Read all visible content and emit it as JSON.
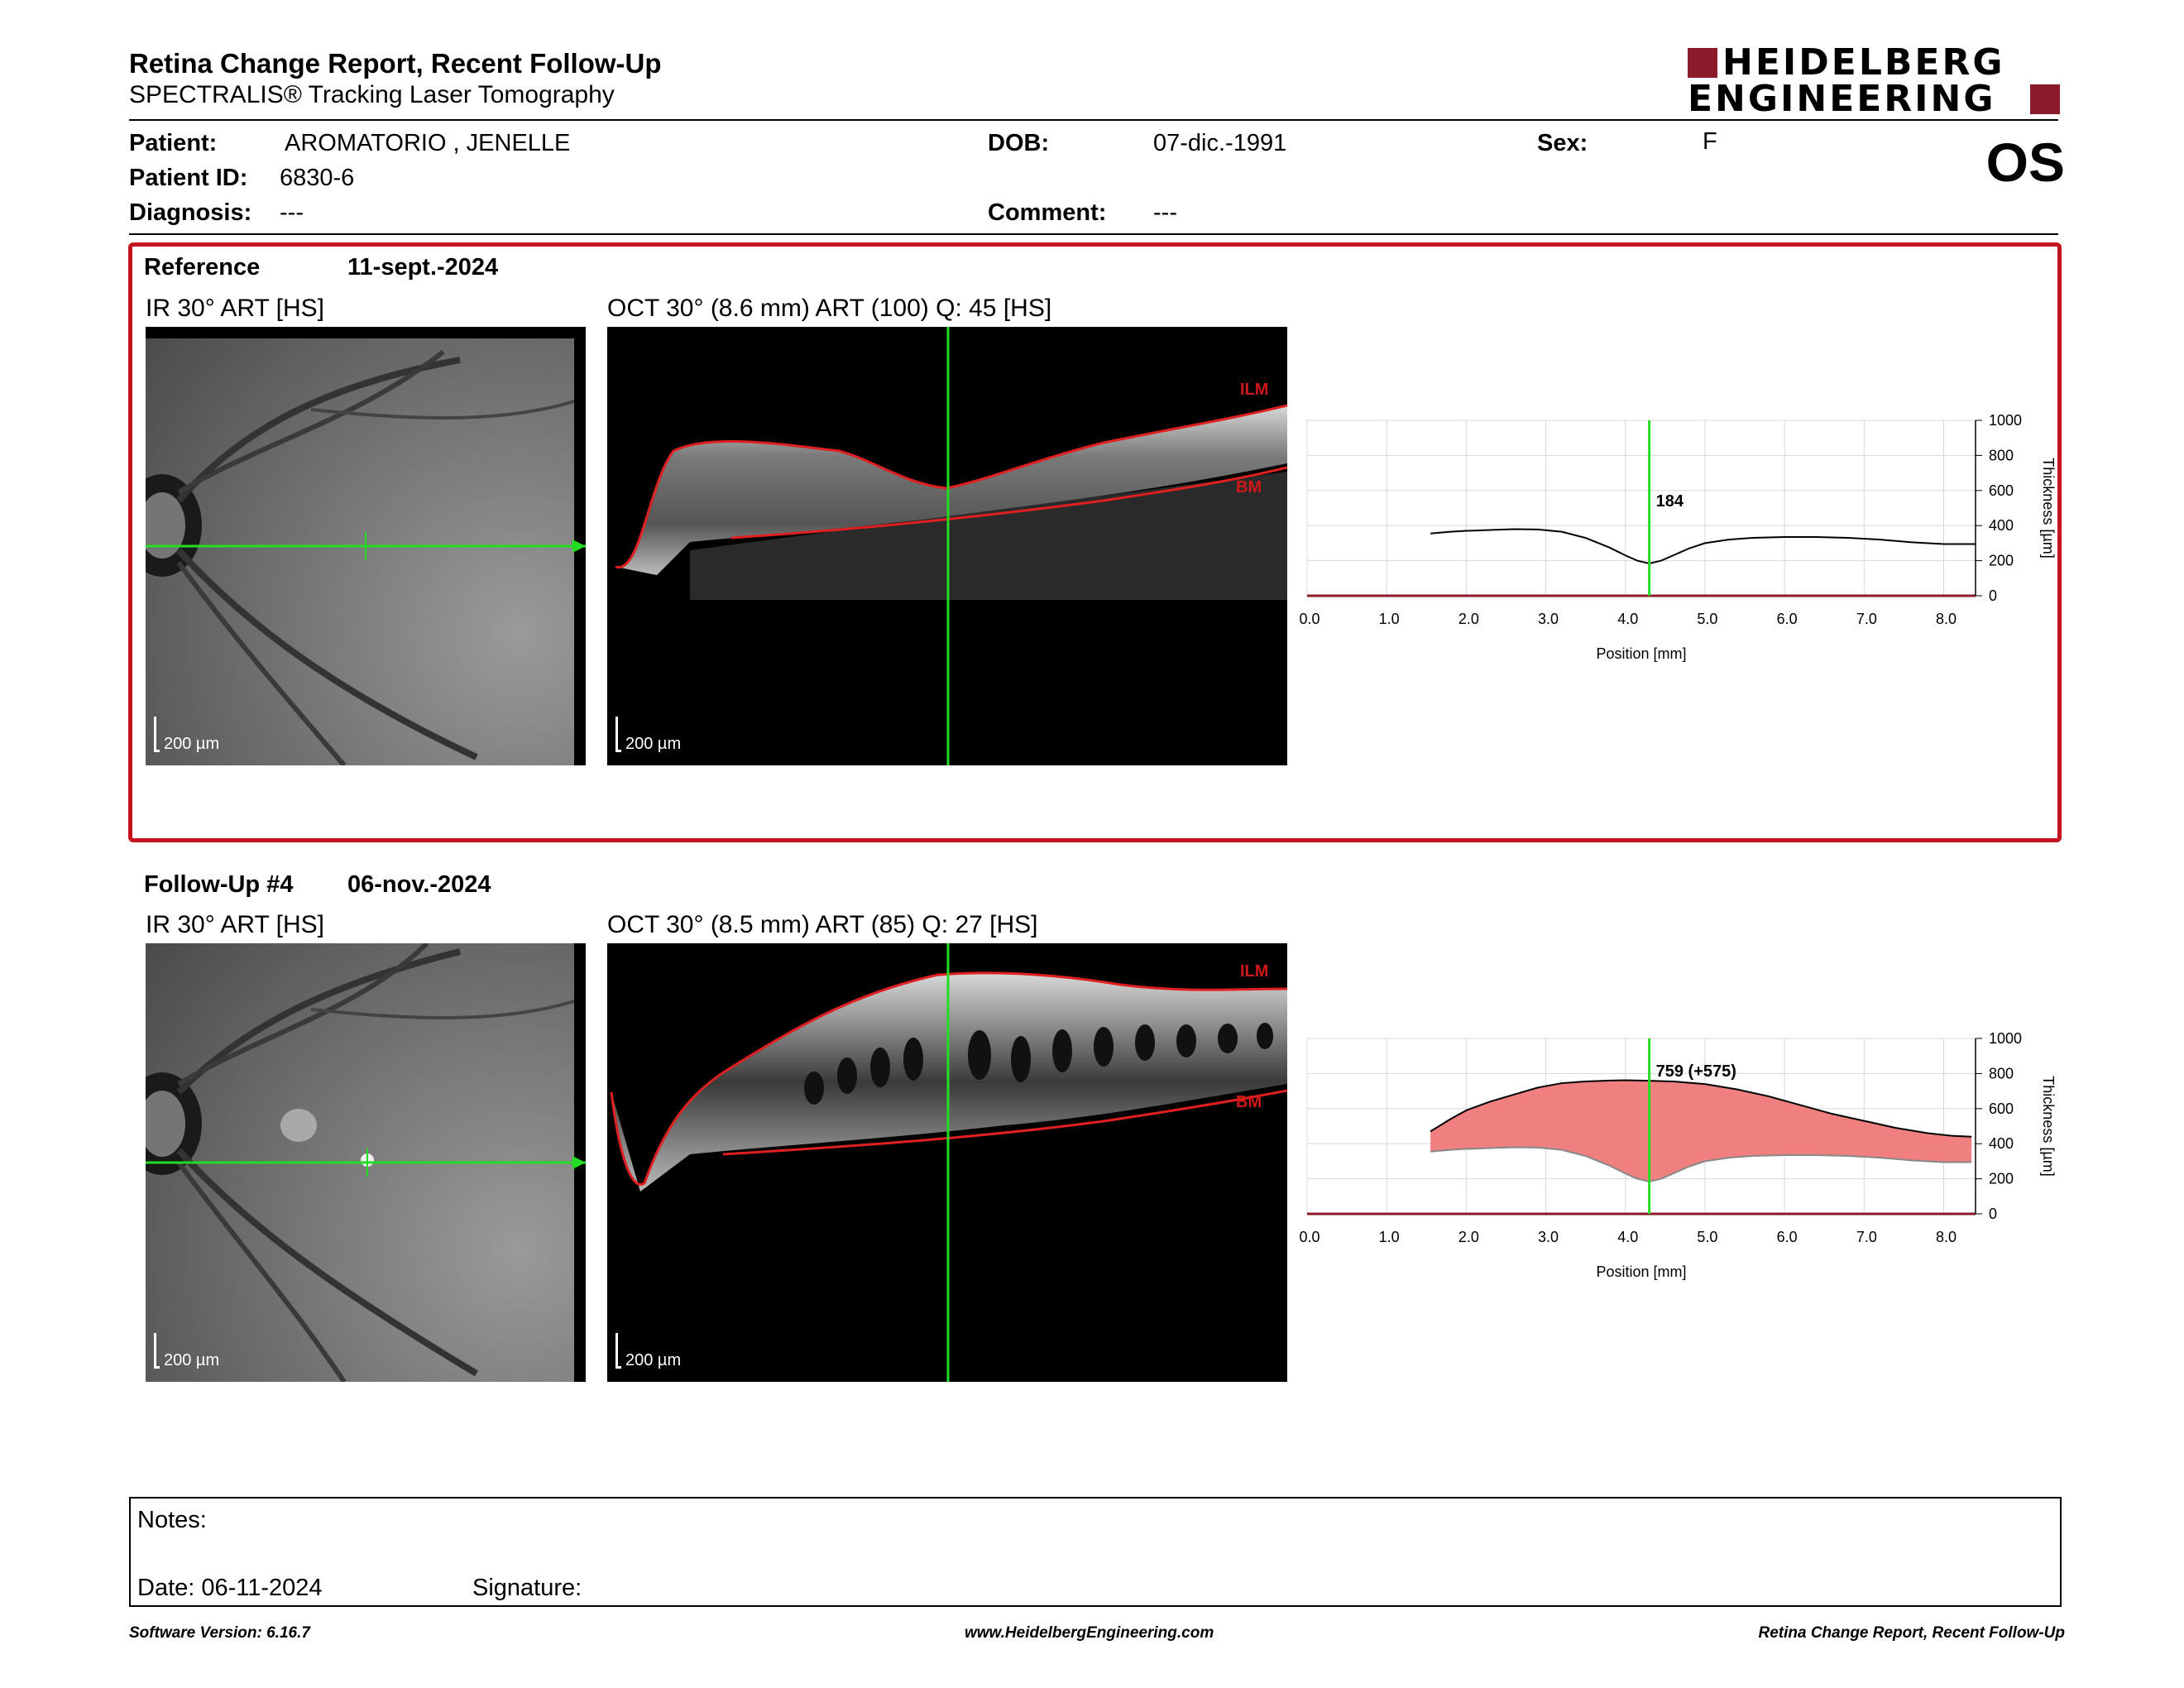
{
  "header": {
    "title": "Retina Change Report, Recent Follow-Up",
    "subtitle": "SPECTRALIS® Tracking Laser Tomography",
    "logo_line1": "HEIDELBERG",
    "logo_line2": "ENGINEERING",
    "eye": "OS"
  },
  "patient": {
    "patient_label": "Patient:",
    "patient_name": "AROMATORIO , JENELLE",
    "id_label": "Patient ID:",
    "id_value": "6830-6",
    "diagnosis_label": "Diagnosis:",
    "diagnosis_value": "---",
    "dob_label": "DOB:",
    "dob_value": "07-dic.-1991",
    "comment_label": "Comment:",
    "comment_value": "---",
    "sex_label": "Sex:",
    "sex_value": "F"
  },
  "reference": {
    "label": "Reference",
    "date": "11-sept.-2024",
    "ir_caption": "IR 30° ART [HS]",
    "oct_caption": "OCT 30° (8.6 mm) ART (100) Q: 45 [HS]",
    "scale_label": "200 µm",
    "ilm": "ILM",
    "bm": "BM"
  },
  "followup": {
    "label": "Follow-Up #4",
    "date": "06-nov.-2024",
    "ir_caption": "IR 30° ART [HS]",
    "oct_caption": "OCT 30° (8.5 mm) ART (85) Q: 27 [HS]",
    "scale_label": "200 µm",
    "ilm": "ILM",
    "bm": "BM"
  },
  "chart_data": [
    {
      "type": "line",
      "xlabel": "Position [mm]",
      "ylabel": "Thickness [µm]",
      "xlim": [
        0,
        8.4
      ],
      "ylim": [
        0,
        1000
      ],
      "xticks": [
        "0.0",
        "1.0",
        "2.0",
        "3.0",
        "4.0",
        "5.0",
        "6.0",
        "7.0",
        "8.0"
      ],
      "yticks": [
        "0",
        "200",
        "400",
        "600",
        "800",
        "1000"
      ],
      "grid": true,
      "marker_x": 4.3,
      "marker_label": "184",
      "series": [
        {
          "x": [
            1.55,
            1.8,
            2.0,
            2.3,
            2.6,
            2.9,
            3.2,
            3.5,
            3.8,
            4.0,
            4.15,
            4.3,
            4.45,
            4.6,
            4.8,
            5.0,
            5.3,
            5.6,
            6.0,
            6.4,
            6.8,
            7.2,
            7.6,
            8.0,
            8.4
          ],
          "values": [
            355,
            365,
            370,
            375,
            380,
            378,
            365,
            330,
            275,
            230,
            200,
            184,
            200,
            230,
            270,
            300,
            320,
            330,
            335,
            335,
            330,
            320,
            305,
            295,
            295
          ]
        }
      ]
    },
    {
      "type": "area",
      "xlabel": "Position [mm]",
      "ylabel": "Thickness [µm]",
      "xlim": [
        0,
        8.4
      ],
      "ylim": [
        0,
        1000
      ],
      "xticks": [
        "0.0",
        "1.0",
        "2.0",
        "3.0",
        "4.0",
        "5.0",
        "6.0",
        "7.0",
        "8.0"
      ],
      "yticks": [
        "0",
        "200",
        "400",
        "600",
        "800",
        "1000"
      ],
      "grid": true,
      "marker_x": 4.3,
      "marker_label": "759 (+575)",
      "series": [
        {
          "x": [
            1.55,
            1.8,
            2.0,
            2.3,
            2.6,
            2.9,
            3.2,
            3.5,
            3.8,
            4.0,
            4.3,
            4.6,
            5.0,
            5.4,
            5.8,
            6.2,
            6.6,
            7.0,
            7.4,
            7.8,
            8.1,
            8.35
          ],
          "values": [
            470,
            540,
            590,
            640,
            680,
            720,
            745,
            755,
            760,
            762,
            759,
            755,
            740,
            710,
            670,
            620,
            570,
            530,
            490,
            460,
            445,
            440
          ]
        },
        {
          "x": [
            1.55,
            1.8,
            2.0,
            2.3,
            2.6,
            2.9,
            3.2,
            3.5,
            3.8,
            4.0,
            4.15,
            4.3,
            4.45,
            4.6,
            4.8,
            5.0,
            5.3,
            5.6,
            6.0,
            6.4,
            6.8,
            7.2,
            7.6,
            8.0,
            8.35
          ],
          "values": [
            355,
            365,
            370,
            375,
            380,
            378,
            365,
            330,
            275,
            230,
            200,
            184,
            200,
            230,
            270,
            300,
            320,
            330,
            335,
            335,
            330,
            320,
            305,
            295,
            295
          ]
        }
      ]
    }
  ],
  "notes": {
    "notes_label": "Notes:",
    "date_label": "Date: 06-11-2024",
    "signature_label": "Signature:"
  },
  "footer": {
    "left": "Software Version: 6.16.7",
    "center": "www.HeidelbergEngineering.com",
    "right": "Retina Change Report, Recent Follow-Up"
  }
}
